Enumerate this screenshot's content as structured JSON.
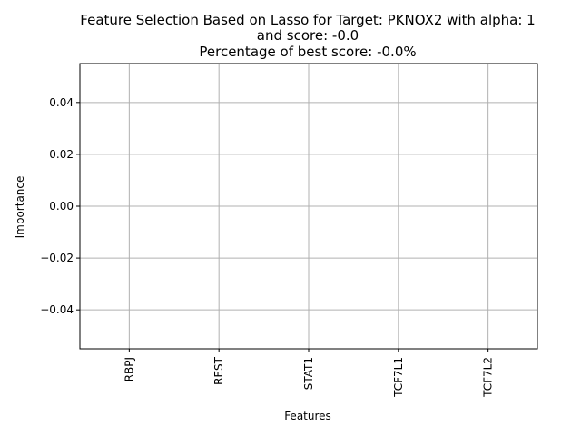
{
  "chart_data": {
    "type": "bar",
    "title_lines": [
      "Feature Selection Based on Lasso for Target: PKNOX2 with alpha: 1",
      "and score: -0.0",
      "Percentage of best score: -0.0%"
    ],
    "xlabel": "Features",
    "ylabel": "Importance",
    "categories": [
      "RBPJ",
      "REST",
      "STAT1",
      "TCF7L1",
      "TCF7L2"
    ],
    "values": [
      0,
      0,
      0,
      0,
      0
    ],
    "ylim": [
      -0.055,
      0.055
    ],
    "yticks": [
      -0.04,
      -0.02,
      0.0,
      0.02,
      0.04
    ],
    "ytick_labels": [
      "−0.04",
      "−0.02",
      "0.00",
      "0.02",
      "0.04"
    ],
    "grid": true,
    "bar_color": "#1f77b4",
    "grid_color": "#b0b0b0"
  }
}
